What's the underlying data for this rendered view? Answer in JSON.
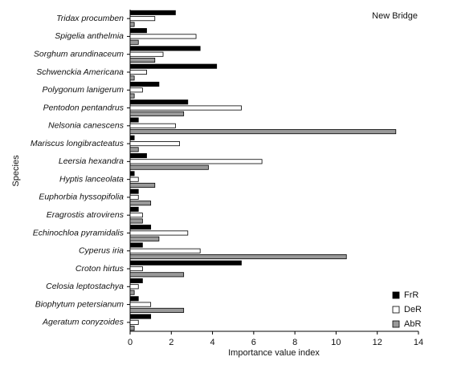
{
  "chart_data": {
    "type": "barh",
    "x_label": "Importance value index",
    "y_label": "Species",
    "annotation": "New Bridge",
    "categories": [
      "Tridax procumben",
      "Spigelia anthelmia",
      "Sorghum arundinaceum",
      "Schwenckia Americana",
      "Polygonum lanigerum",
      "Pentodon pentandrus",
      "Nelsonia canescens",
      "Mariscus longibracteatus",
      "Leersia hexandra",
      "Hyptis lanceolata",
      "Euphorbia hyssopifolia",
      "Eragrostis atrovirens",
      "Echinochloa pyramidalis",
      "Cyperus iria",
      "Croton hirtus",
      "Celosia leptostachya",
      "Biophytum petersianum",
      "Ageratum conyzoides"
    ],
    "series": [
      {
        "name": "FrR",
        "color": "#000000",
        "values": [
          2.2,
          0.8,
          3.4,
          4.2,
          1.4,
          2.8,
          0.4,
          0.2,
          0.8,
          0.2,
          0.4,
          0.4,
          1.0,
          0.6,
          5.4,
          0.6,
          0.4,
          1.0
        ]
      },
      {
        "name": "DeR",
        "color": "#ffffff",
        "values": [
          1.2,
          3.2,
          1.6,
          0.8,
          0.6,
          5.4,
          2.2,
          2.4,
          6.4,
          0.4,
          0.4,
          0.6,
          2.8,
          3.4,
          0.6,
          0.4,
          1.0,
          0.4
        ]
      },
      {
        "name": "AbR",
        "color": "#999999",
        "values": [
          0.2,
          0.4,
          1.2,
          0.2,
          0.2,
          2.6,
          12.9,
          0.4,
          3.8,
          1.2,
          1.0,
          0.6,
          1.4,
          10.5,
          2.6,
          0.2,
          2.6,
          0.2
        ]
      }
    ],
    "xlim": [
      0,
      14
    ],
    "xticks": [
      0,
      2,
      4,
      6,
      8,
      10,
      12,
      14
    ],
    "legend": "lower right"
  }
}
